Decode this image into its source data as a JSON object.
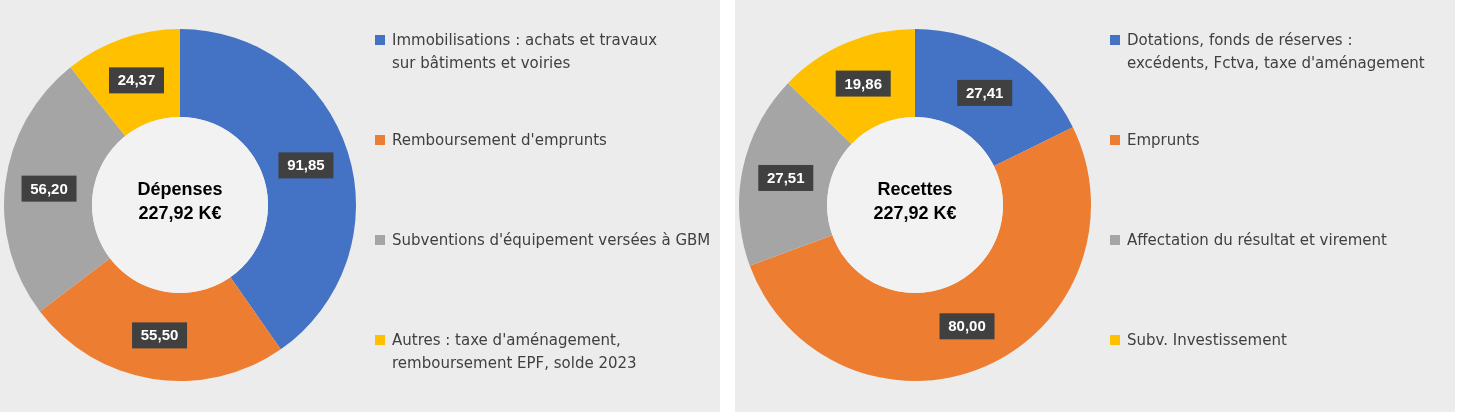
{
  "chart_data": [
    {
      "type": "donut",
      "categories": [
        "Immobilisations : achats et travaux sur bâtiments et voiries",
        "Remboursement d'emprunts",
        "Subventions d'équipement versées à GBM",
        "Autres : taxe d'aménagement, remboursement EPF, solde 2023"
      ],
      "values": [
        91.85,
        55.5,
        56.2,
        24.37
      ],
      "value_labels": [
        "91,85",
        "55,50",
        "56,20",
        "24,37"
      ],
      "colors": [
        "#4472c4",
        "#ed7d31",
        "#a5a5a5",
        "#ffc000"
      ],
      "annotations": [
        "Dépenses",
        "227,92 K€"
      ],
      "legend": "right"
    },
    {
      "type": "donut",
      "categories": [
        "Dotations, fonds de réserves : excédents, Fctva, taxe d'aménagement",
        "Emprunts",
        "Affectation du résultat et virement",
        "Subv. Investissement"
      ],
      "values": [
        27.41,
        80.0,
        27.51,
        19.86
      ],
      "value_labels": [
        "27,41",
        "80,00",
        "27,51",
        "19,86"
      ],
      "colors": [
        "#4472c4",
        "#ed7d31",
        "#a5a5a5",
        "#ffc000"
      ],
      "annotations": [
        "Recettes",
        "227,92 K€"
      ],
      "legend": "right"
    }
  ]
}
